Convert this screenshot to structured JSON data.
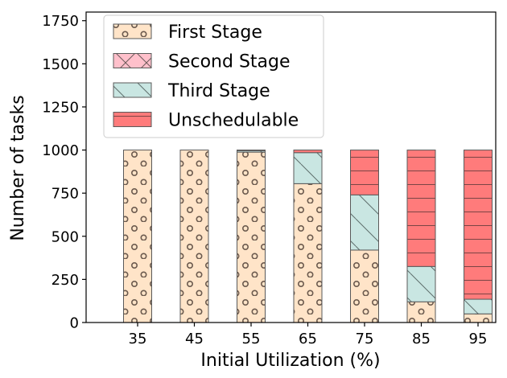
{
  "chart_data": {
    "type": "bar",
    "stacked": true,
    "xlabel": "Initial Utilization (%)",
    "ylabel": "Number of tasks",
    "categories": [
      "35",
      "45",
      "55",
      "65",
      "75",
      "85",
      "95"
    ],
    "ylim": [
      0,
      1800
    ],
    "yticks": [
      0,
      250,
      500,
      750,
      1000,
      1250,
      1500,
      1750
    ],
    "grid": false,
    "legend": "top-left",
    "series": [
      {
        "name": "First Stage",
        "values": [
          1000,
          1000,
          988,
          805,
          420,
          120,
          50
        ],
        "color": "#ffe4c8",
        "hatch": "circles"
      },
      {
        "name": "Second Stage",
        "values": [
          0,
          0,
          0,
          0,
          0,
          0,
          0
        ],
        "color": "#ffc0cb",
        "hatch": "cross-diagonal"
      },
      {
        "name": "Third Stage",
        "values": [
          0,
          0,
          8,
          180,
          320,
          205,
          85
        ],
        "color": "#c9e6e2",
        "hatch": "back-diagonal"
      },
      {
        "name": "Unschedulable",
        "values": [
          0,
          0,
          4,
          15,
          260,
          675,
          865
        ],
        "color": "#ff7b7b",
        "hatch": "horizontal"
      }
    ]
  }
}
